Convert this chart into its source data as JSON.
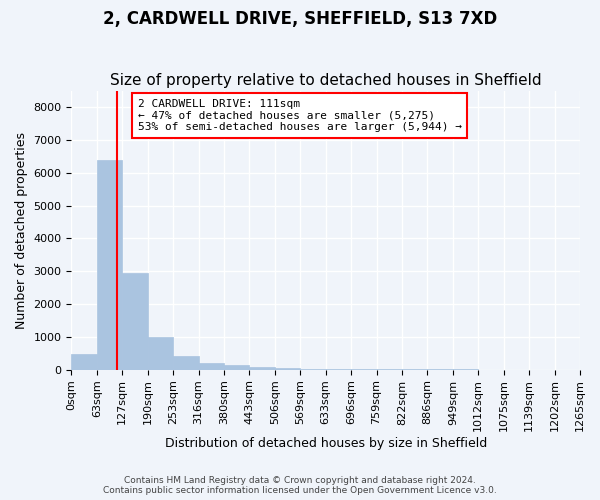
{
  "title": "2, CARDWELL DRIVE, SHEFFIELD, S13 7XD",
  "subtitle": "Size of property relative to detached houses in Sheffield",
  "xlabel": "Distribution of detached houses by size in Sheffield",
  "ylabel": "Number of detached properties",
  "bar_values": [
    480,
    6380,
    2930,
    1000,
    430,
    210,
    130,
    80,
    55,
    35,
    25,
    20,
    15,
    12,
    10,
    8,
    6,
    5,
    4,
    3
  ],
  "bar_color": "#aac4e0",
  "bar_edge_color": "#aac4e0",
  "x_labels": [
    "0sqm",
    "63sqm",
    "127sqm",
    "190sqm",
    "253sqm",
    "316sqm",
    "380sqm",
    "443sqm",
    "506sqm",
    "569sqm",
    "633sqm",
    "696sqm",
    "759sqm",
    "822sqm",
    "886sqm",
    "949sqm",
    "1012sqm",
    "1075sqm",
    "1139sqm",
    "1202sqm",
    "1265sqm"
  ],
  "ylim": [
    0,
    8500
  ],
  "yticks": [
    0,
    1000,
    2000,
    3000,
    4000,
    5000,
    6000,
    7000,
    8000
  ],
  "red_line_x": 1.78,
  "annotation_text": "2 CARDWELL DRIVE: 111sqm\n← 47% of detached houses are smaller (5,275)\n53% of semi-detached houses are larger (5,944) →",
  "annotation_box_color": "white",
  "annotation_border_color": "red",
  "footer_text": "Contains HM Land Registry data © Crown copyright and database right 2024.\nContains public sector information licensed under the Open Government Licence v3.0.",
  "bg_color": "#f0f4fa",
  "grid_color": "white",
  "title_fontsize": 12,
  "subtitle_fontsize": 11,
  "axis_label_fontsize": 9,
  "tick_fontsize": 8
}
